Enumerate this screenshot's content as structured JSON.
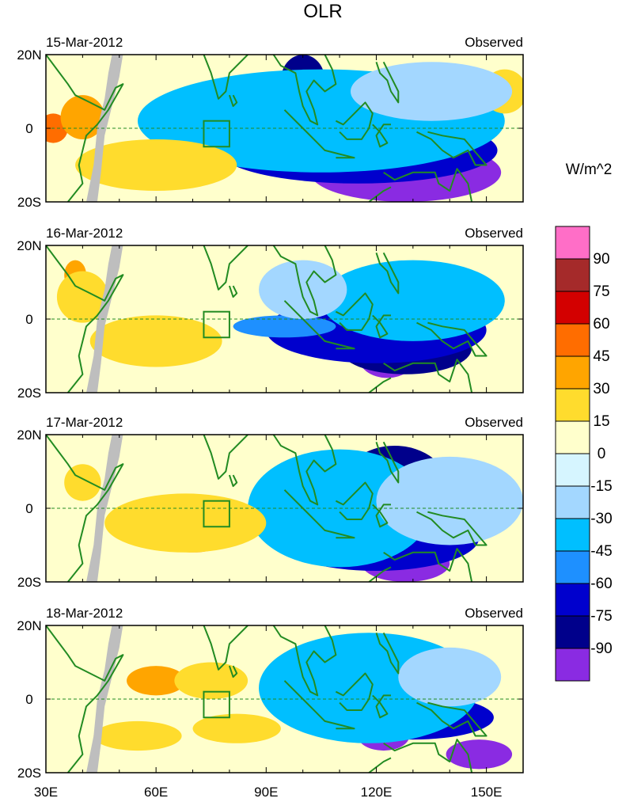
{
  "chart_data": {
    "type": "heatmap",
    "title": "OLR",
    "units_label": "W/m^2",
    "colorbar": {
      "labels": [
        "90",
        "75",
        "60",
        "45",
        "30",
        "15",
        "0",
        "-15",
        "-30",
        "-45",
        "-60",
        "-75",
        "-90"
      ],
      "colors": [
        "#ff6ec7",
        "#a52a2a",
        "#d30000",
        "#ff6d00",
        "#ffa500",
        "#ffdc2d",
        "#ffffcc",
        "#d6f5ff",
        "#a3d7ff",
        "#00bfff",
        "#1e90ff",
        "#0000cd",
        "#00008b",
        "#8a2be2"
      ]
    },
    "x_ticks": [
      {
        "lon": 30,
        "label": "30E"
      },
      {
        "lon": 60,
        "label": "60E"
      },
      {
        "lon": 90,
        "label": "90E"
      },
      {
        "lon": 120,
        "label": "120E"
      },
      {
        "lon": 150,
        "label": "150E"
      }
    ],
    "y_ticks": [
      {
        "lat": 20,
        "label": "20N"
      },
      {
        "lat": 0,
        "label": "0"
      },
      {
        "lat": -20,
        "label": "20S"
      }
    ],
    "xlim": [
      30,
      160
    ],
    "ylim": [
      -20,
      20
    ],
    "box_region": {
      "lon": [
        73,
        80
      ],
      "lat": [
        -5,
        2
      ]
    },
    "panels": [
      {
        "date": "15-Mar-2012",
        "source": "Observed",
        "blobs": [
          {
            "lon": 128,
            "lat": -12,
            "rx": 26,
            "ry": 8,
            "level": -90
          },
          {
            "lon": 112,
            "lat": -12,
            "rx": 7,
            "ry": 6,
            "level": -90
          },
          {
            "lon": 140,
            "lat": -13,
            "rx": 6,
            "ry": 5,
            "level": -90
          },
          {
            "lon": 115,
            "lat": -6,
            "rx": 38,
            "ry": 9,
            "level": -60
          },
          {
            "lon": 100,
            "lat": 13,
            "rx": 6,
            "ry": 7,
            "level": -75
          },
          {
            "lon": 128,
            "lat": 2,
            "rx": 8,
            "ry": 5,
            "level": -75
          },
          {
            "lon": 85,
            "lat": -4,
            "rx": 12,
            "ry": 3,
            "level": -60
          },
          {
            "lon": 105,
            "lat": 2,
            "rx": 50,
            "ry": 14,
            "level": -30
          },
          {
            "lon": 135,
            "lat": 10,
            "rx": 22,
            "ry": 8,
            "level": -15
          },
          {
            "lon": 60,
            "lat": -10,
            "rx": 22,
            "ry": 7,
            "level": 30
          },
          {
            "lon": 40,
            "lat": 3,
            "rx": 6,
            "ry": 6,
            "level": 45
          },
          {
            "lon": 32,
            "lat": 0,
            "rx": 4,
            "ry": 4,
            "level": 60
          },
          {
            "lon": 155,
            "lat": 10,
            "rx": 6,
            "ry": 6,
            "level": 30
          }
        ]
      },
      {
        "date": "16-Mar-2012",
        "source": "Observed",
        "blobs": [
          {
            "lon": 123,
            "lat": -10,
            "rx": 8,
            "ry": 6,
            "level": -90
          },
          {
            "lon": 125,
            "lat": 4,
            "rx": 7,
            "ry": 4,
            "level": -90
          },
          {
            "lon": 128,
            "lat": -8,
            "rx": 18,
            "ry": 7,
            "level": -75
          },
          {
            "lon": 120,
            "lat": -3,
            "rx": 30,
            "ry": 9,
            "level": -60
          },
          {
            "lon": 95,
            "lat": -2,
            "rx": 14,
            "ry": 3,
            "level": -45
          },
          {
            "lon": 130,
            "lat": 5,
            "rx": 25,
            "ry": 11,
            "level": -30
          },
          {
            "lon": 100,
            "lat": 8,
            "rx": 12,
            "ry": 8,
            "level": -15
          },
          {
            "lon": 60,
            "lat": -6,
            "rx": 18,
            "ry": 7,
            "level": 30
          },
          {
            "lon": 40,
            "lat": 6,
            "rx": 7,
            "ry": 7,
            "level": 30
          },
          {
            "lon": 38,
            "lat": 12,
            "rx": 3,
            "ry": 4,
            "level": 45
          }
        ]
      },
      {
        "date": "17-Mar-2012",
        "source": "Observed",
        "blobs": [
          {
            "lon": 128,
            "lat": -15,
            "rx": 12,
            "ry": 5,
            "level": -90
          },
          {
            "lon": 128,
            "lat": 10,
            "rx": 7,
            "ry": 4,
            "level": -90
          },
          {
            "lon": 125,
            "lat": 5,
            "rx": 15,
            "ry": 12,
            "level": -75
          },
          {
            "lon": 120,
            "lat": -8,
            "rx": 28,
            "ry": 9,
            "level": -60
          },
          {
            "lon": 110,
            "lat": 0,
            "rx": 25,
            "ry": 16,
            "level": -30
          },
          {
            "lon": 140,
            "lat": 2,
            "rx": 20,
            "ry": 12,
            "level": -15
          },
          {
            "lon": 68,
            "lat": -4,
            "rx": 22,
            "ry": 8,
            "level": 30
          },
          {
            "lon": 70,
            "lat": -8,
            "rx": 10,
            "ry": 4,
            "level": 45
          },
          {
            "lon": 40,
            "lat": 7,
            "rx": 5,
            "ry": 5,
            "level": 30
          }
        ]
      },
      {
        "date": "18-Mar-2012",
        "source": "Observed",
        "blobs": [
          {
            "lon": 122,
            "lat": -10,
            "rx": 7,
            "ry": 4,
            "level": -90
          },
          {
            "lon": 148,
            "lat": -15,
            "rx": 9,
            "ry": 4,
            "level": -90
          },
          {
            "lon": 125,
            "lat": 10,
            "rx": 6,
            "ry": 6,
            "level": -75
          },
          {
            "lon": 130,
            "lat": -5,
            "rx": 22,
            "ry": 6,
            "level": -60
          },
          {
            "lon": 118,
            "lat": 3,
            "rx": 30,
            "ry": 15,
            "level": -30
          },
          {
            "lon": 140,
            "lat": 6,
            "rx": 14,
            "ry": 8,
            "level": -15
          },
          {
            "lon": 75,
            "lat": 5,
            "rx": 10,
            "ry": 5,
            "level": 30
          },
          {
            "lon": 55,
            "lat": -10,
            "rx": 12,
            "ry": 4,
            "level": 30
          },
          {
            "lon": 82,
            "lat": -8,
            "rx": 12,
            "ry": 4,
            "level": 30
          },
          {
            "lon": 60,
            "lat": 5,
            "rx": 8,
            "ry": 4,
            "level": 45
          }
        ]
      }
    ]
  }
}
